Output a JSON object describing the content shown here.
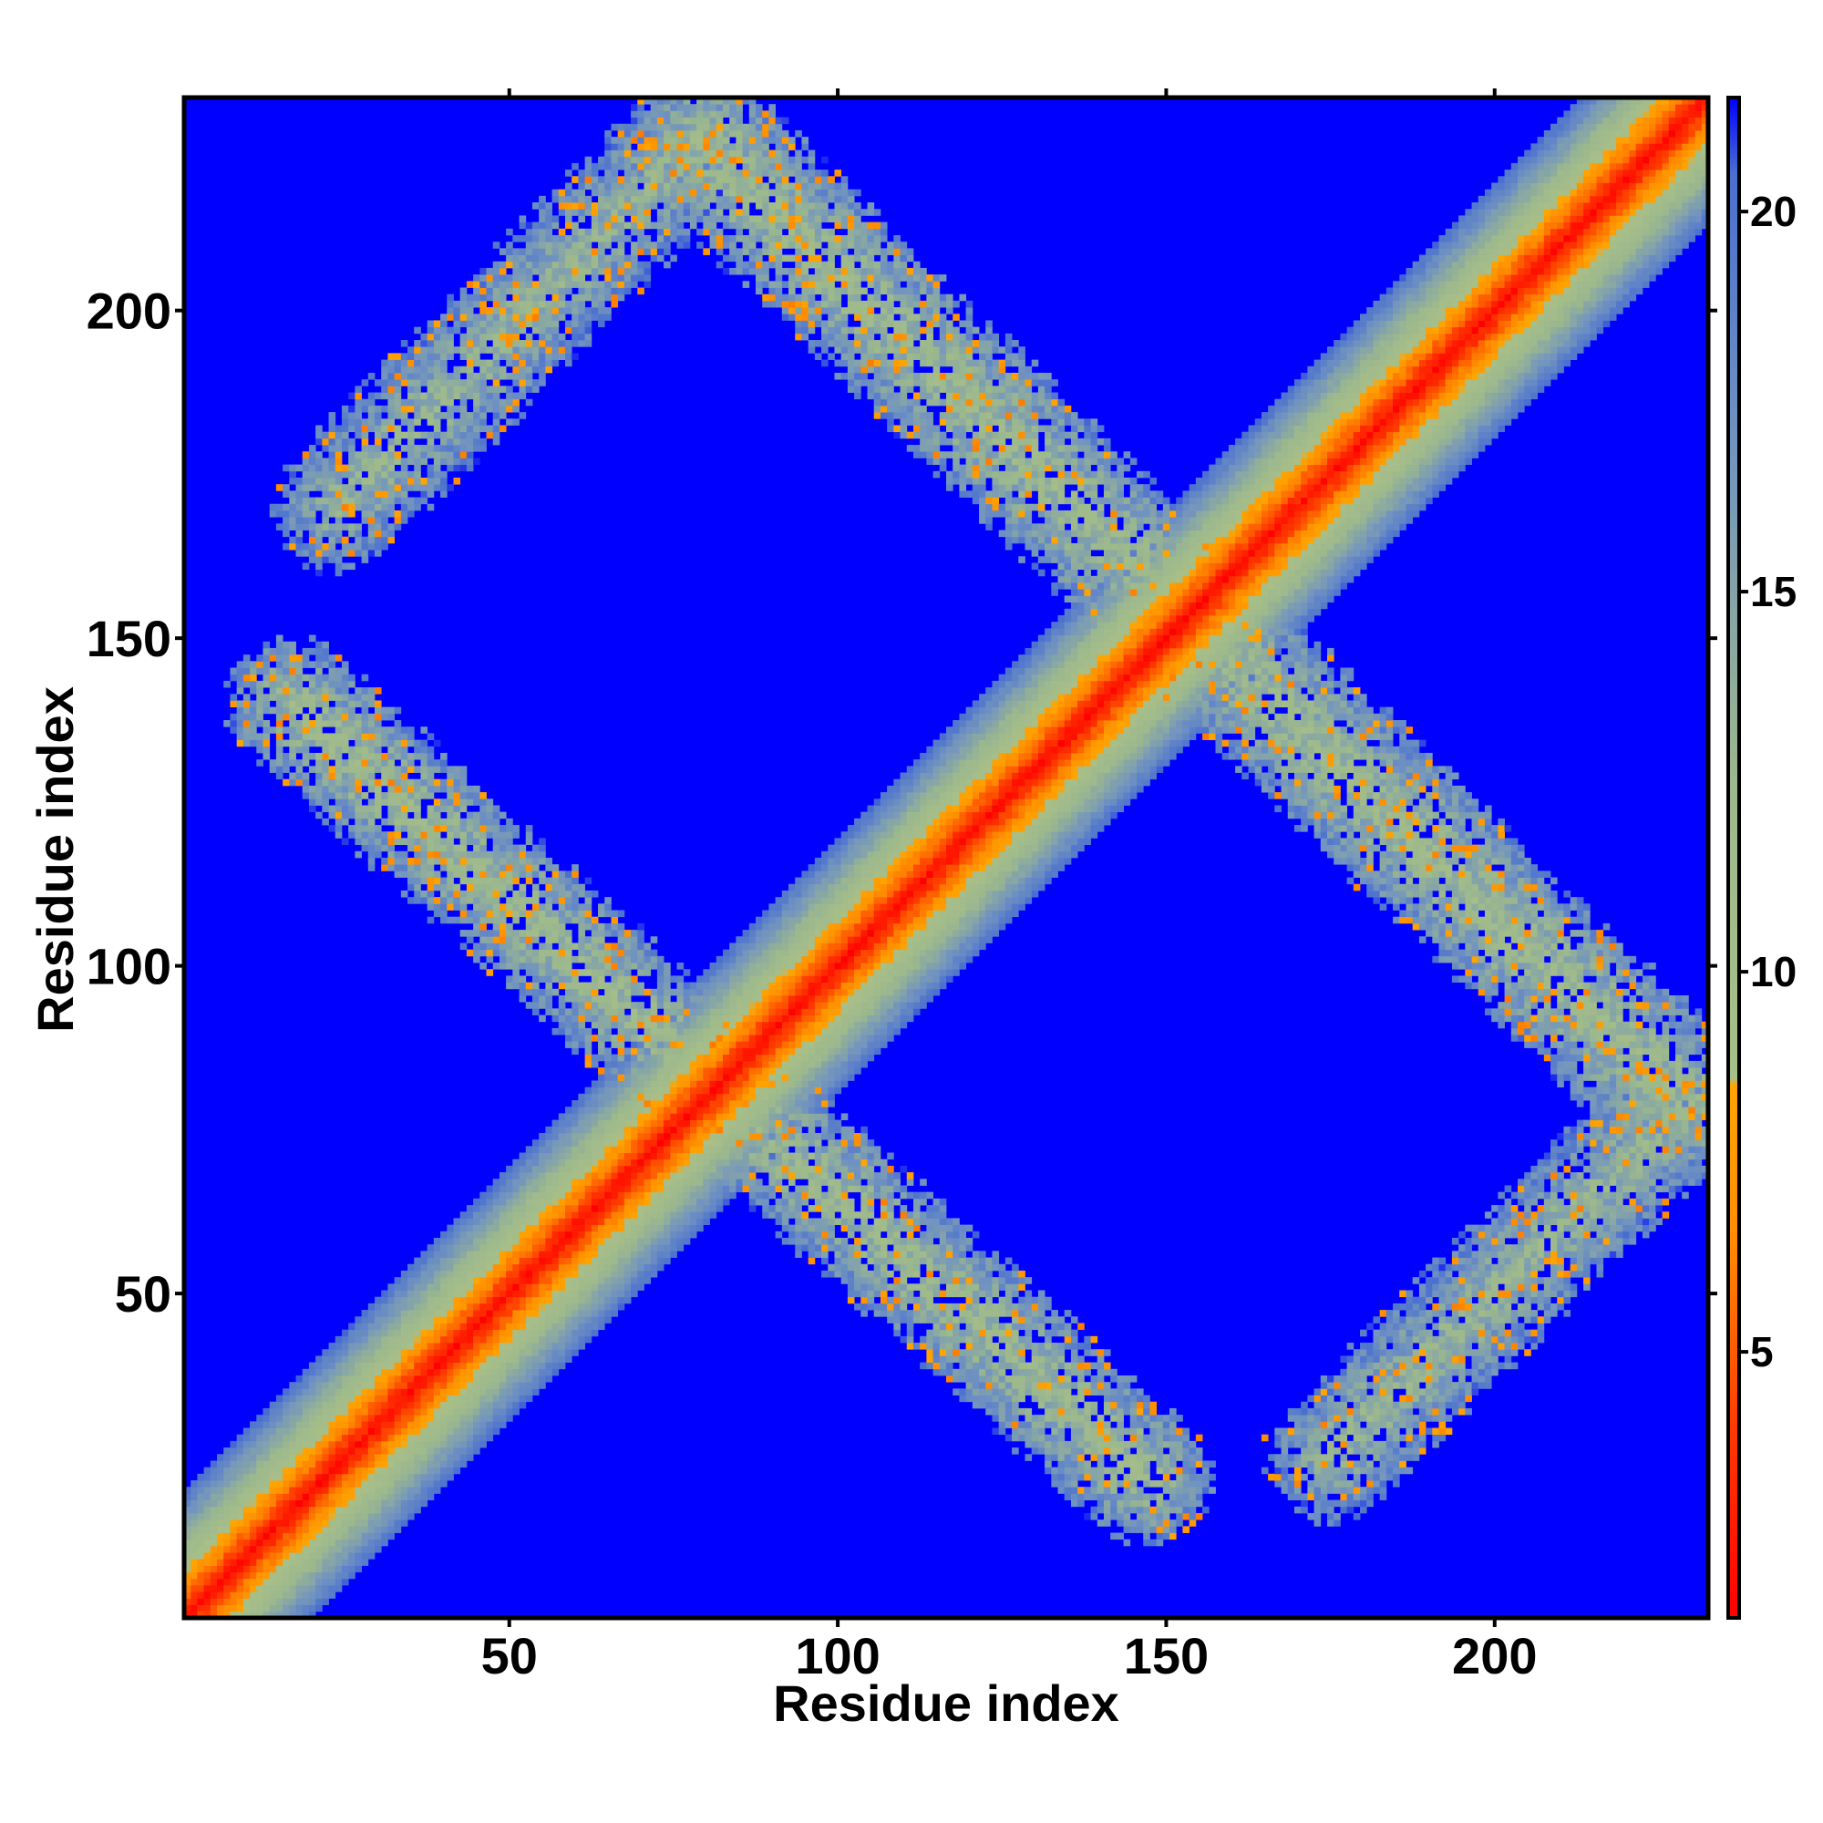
{
  "chart_data": {
    "type": "heatmap",
    "title": "",
    "xlabel": "Residue index",
    "ylabel": "Residue index",
    "xlim": [
      1,
      232
    ],
    "ylim": [
      1,
      232
    ],
    "xticks": [
      50,
      100,
      150,
      200
    ],
    "xtick_labels": [
      "50",
      "100",
      "150",
      "200"
    ],
    "yticks": [
      50,
      100,
      150,
      200
    ],
    "ytick_labels": [
      "50",
      "100",
      "150",
      "200"
    ],
    "background_value": 21.5,
    "colorbar": {
      "range": [
        1.5,
        21.5
      ],
      "ticks": [
        5,
        10,
        15,
        20
      ],
      "tick_labels": [
        "5",
        "10",
        "15",
        "20"
      ],
      "colors": [
        {
          "value": 1.5,
          "color": "#ff0000"
        },
        {
          "value": 4.0,
          "color": "#ff3a00"
        },
        {
          "value": 6.5,
          "color": "#ff8c00"
        },
        {
          "value": 8.5,
          "color": "#ffa500"
        },
        {
          "value": 8.6,
          "color": "#a9bf88"
        },
        {
          "value": 12.5,
          "color": "#9cb88d"
        },
        {
          "value": 17.0,
          "color": "#7193c0"
        },
        {
          "value": 20.5,
          "color": "#4a6fd0"
        },
        {
          "value": 21.5,
          "color": "#0000ff"
        }
      ]
    },
    "contact_bands": [
      {
        "name": "diagonal",
        "from": [
          1,
          1
        ],
        "to": [
          232,
          232
        ],
        "half_width": 12,
        "core_value": 2
      },
      {
        "name": "lower-left antidiagonal",
        "from": [
          17,
          140
        ],
        "to": [
          147,
          22
        ],
        "half_width": 9,
        "core_value": 12
      },
      {
        "name": "upper-right antidiagonal",
        "from": [
          79,
          226
        ],
        "to": [
          229,
          79
        ],
        "half_width": 10,
        "core_value": 12
      },
      {
        "name": "lower-right band",
        "from": [
          175,
          25
        ],
        "to": [
          225,
          75
        ],
        "half_width": 9,
        "core_value": 13
      },
      {
        "name": "upper-left band",
        "from": [
          24,
          170
        ],
        "to": [
          74,
          222
        ],
        "half_width": 9,
        "core_value": 13
      }
    ]
  }
}
